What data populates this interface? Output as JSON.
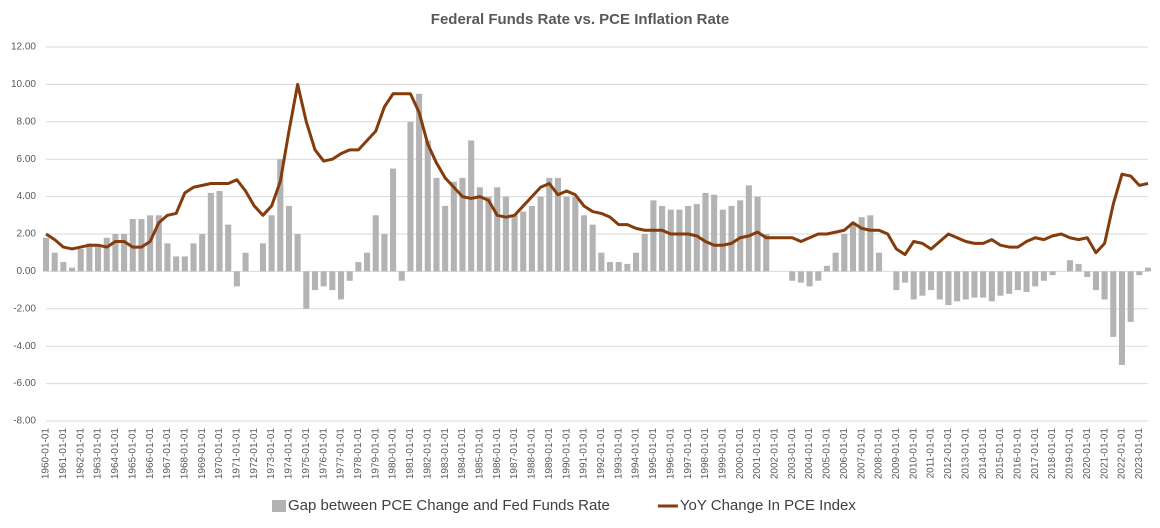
{
  "chart_data": {
    "type": "combo",
    "title": "Federal Funds Rate vs. PCE Inflation Rate",
    "categories": [
      "1960-01-01",
      null,
      "1961-01-01",
      null,
      "1962-01-01",
      null,
      "1963-01-01",
      null,
      "1964-01-01",
      null,
      "1965-01-01",
      null,
      "1966-01-01",
      null,
      "1967-01-01",
      null,
      "1968-01-01",
      null,
      "1969-01-01",
      null,
      "1970-01-01",
      null,
      "1971-01-01",
      null,
      "1972-01-01",
      null,
      "1973-01-01",
      null,
      "1974-01-01",
      null,
      "1975-01-01",
      null,
      "1976-01-01",
      null,
      "1977-01-01",
      null,
      "1978-01-01",
      null,
      "1979-01-01",
      null,
      "1980-01-01",
      null,
      "1981-01-01",
      null,
      "1982-01-01",
      null,
      "1983-01-01",
      null,
      "1984-01-01",
      null,
      "1985-01-01",
      null,
      "1986-01-01",
      null,
      "1987-01-01",
      null,
      "1988-01-01",
      null,
      "1989-01-01",
      null,
      "1990-01-01",
      null,
      "1991-01-01",
      null,
      "1992-01-01",
      null,
      "1993-01-01",
      null,
      "1994-01-01",
      null,
      "1995-01-01",
      null,
      "1996-01-01",
      null,
      "1997-01-01",
      null,
      "1998-01-01",
      null,
      "1999-01-01",
      null,
      "2000-01-01",
      null,
      "2001-01-01",
      null,
      "2002-01-01",
      null,
      "2003-01-01",
      null,
      "2004-01-01",
      null,
      "2005-01-01",
      null,
      "2006-01-01",
      null,
      "2007-01-01",
      null,
      "2008-01-01",
      null,
      "2009-01-01",
      null,
      "2010-01-01",
      null,
      "2011-01-01",
      null,
      "2012-01-01",
      null,
      "2013-01-01",
      null,
      "2014-01-01",
      null,
      "2015-01-01",
      null,
      "2016-01-01",
      null,
      "2017-01-01",
      null,
      "2018-01-01",
      null,
      "2019-01-01",
      null,
      "2020-01-01",
      null,
      "2021-01-01",
      null,
      "2022-01-01",
      null,
      "2023-01-01",
      null
    ],
    "series": [
      {
        "name": "Gap between PCE Change and Fed Funds Rate",
        "kind": "bar",
        "color": "#b3b3b3",
        "values": [
          1.8,
          1.0,
          0.5,
          0.2,
          1.2,
          1.5,
          1.4,
          1.8,
          2.0,
          2.0,
          2.8,
          2.8,
          3.0,
          3.0,
          1.5,
          0.8,
          0.8,
          1.5,
          2.0,
          4.2,
          4.3,
          2.5,
          -0.8,
          1.0,
          0.0,
          1.5,
          3.0,
          6.0,
          3.5,
          2.0,
          -2.0,
          -1.0,
          -0.8,
          -1.0,
          -1.5,
          -0.5,
          0.5,
          1.0,
          3.0,
          2.0,
          5.5,
          -0.5,
          8.0,
          9.5,
          7.0,
          5.0,
          3.5,
          4.8,
          5.0,
          7.0,
          4.5,
          4.0,
          4.5,
          4.0,
          3.0,
          3.2,
          3.5,
          4.0,
          5.0,
          5.0,
          4.0,
          4.0,
          3.0,
          2.5,
          1.0,
          0.5,
          0.5,
          0.4,
          1.0,
          2.0,
          3.8,
          3.5,
          3.3,
          3.3,
          3.5,
          3.6,
          4.2,
          4.1,
          3.3,
          3.5,
          3.8,
          4.6,
          4.0,
          2.0,
          0.0,
          0.0,
          -0.5,
          -0.6,
          -0.8,
          -0.5,
          0.3,
          1.0,
          2.0,
          2.6,
          2.9,
          3.0,
          1.0,
          0.0,
          -1.0,
          -0.6,
          -1.5,
          -1.3,
          -1.0,
          -1.5,
          -1.8,
          -1.6,
          -1.5,
          -1.4,
          -1.4,
          -1.6,
          -1.3,
          -1.2,
          -1.0,
          -1.1,
          -0.8,
          -0.5,
          -0.2,
          0.0,
          0.6,
          0.4,
          -0.3,
          -1.0,
          -1.5,
          -3.5,
          -5.0,
          -2.7,
          -0.2,
          0.2
        ]
      },
      {
        "name": "YoY Change In PCE Index",
        "kind": "line",
        "color": "#843c0c",
        "values": [
          2.0,
          1.7,
          1.3,
          1.2,
          1.3,
          1.4,
          1.4,
          1.3,
          1.6,
          1.6,
          1.3,
          1.3,
          1.6,
          2.6,
          3.0,
          3.1,
          4.2,
          4.5,
          4.6,
          4.7,
          4.7,
          4.7,
          4.9,
          4.3,
          3.5,
          3.0,
          3.5,
          4.8,
          7.5,
          10.0,
          8.0,
          6.5,
          5.9,
          6.0,
          6.3,
          6.5,
          6.5,
          7.0,
          7.5,
          8.8,
          9.5,
          9.5,
          9.5,
          8.5,
          6.8,
          5.8,
          5.0,
          4.5,
          4.0,
          3.9,
          4.0,
          3.8,
          3.0,
          2.9,
          3.0,
          3.5,
          4.0,
          4.5,
          4.7,
          4.1,
          4.3,
          4.1,
          3.5,
          3.2,
          3.1,
          2.9,
          2.5,
          2.5,
          2.3,
          2.2,
          2.2,
          2.2,
          2.0,
          2.0,
          2.0,
          1.9,
          1.6,
          1.4,
          1.4,
          1.5,
          1.8,
          1.9,
          2.1,
          1.8,
          1.8,
          1.8,
          1.8,
          1.6,
          1.8,
          2.0,
          2.0,
          2.1,
          2.2,
          2.6,
          2.3,
          2.2,
          2.2,
          2.0,
          1.2,
          0.9,
          1.6,
          1.5,
          1.2,
          1.6,
          2.0,
          1.8,
          1.6,
          1.5,
          1.5,
          1.7,
          1.4,
          1.3,
          1.3,
          1.6,
          1.8,
          1.7,
          1.9,
          2.0,
          1.8,
          1.7,
          1.8,
          1.0,
          1.5,
          3.6,
          5.2,
          5.1,
          4.6,
          4.7
        ]
      }
    ],
    "ylim": [
      -8,
      12
    ],
    "yticks": [
      {
        "value": -8,
        "label": "-8.00"
      },
      {
        "value": -6,
        "label": "-6.00"
      },
      {
        "value": -4,
        "label": "-4.00"
      },
      {
        "value": -2,
        "label": "-2.00"
      },
      {
        "value": 0,
        "label": "0.00"
      },
      {
        "value": 2,
        "label": "2.00"
      },
      {
        "value": 4,
        "label": "4.00"
      },
      {
        "value": 6,
        "label": "6.00"
      },
      {
        "value": 8,
        "label": "8.00"
      },
      {
        "value": 10,
        "label": "10.00"
      },
      {
        "value": 12,
        "label": "12.00"
      }
    ],
    "grid": true,
    "legend": "bottom"
  }
}
